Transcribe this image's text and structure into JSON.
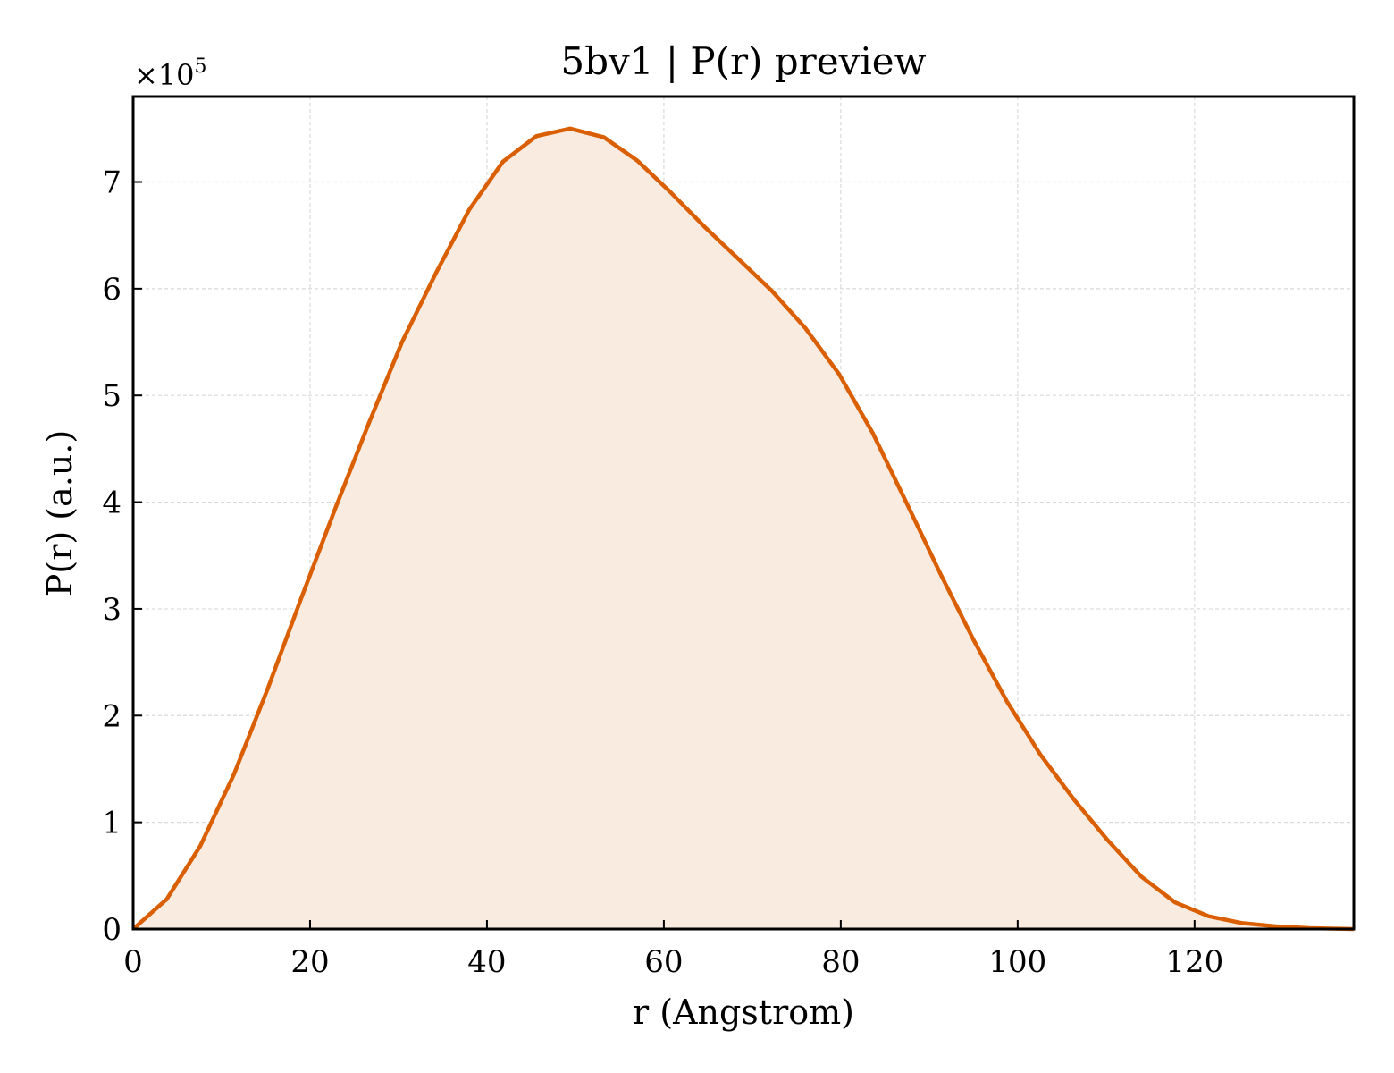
{
  "chart_data": {
    "type": "area",
    "title": "5bv1 | P(r) preview",
    "xlabel": "r (Angstrom)",
    "ylabel": "P(r) (a.u.)",
    "y_offset_label": "×10",
    "y_offset_exponent": "5",
    "y_scale": 100000,
    "xlim": [
      0,
      138
    ],
    "ylim": [
      0,
      780000
    ],
    "x_ticks": [
      0,
      20,
      40,
      60,
      80,
      100,
      120
    ],
    "y_ticks": [
      0,
      1,
      2,
      3,
      4,
      5,
      6,
      7
    ],
    "grid": true,
    "line_color": "#d95f02",
    "fill_color": "#f9ebe0",
    "series": [
      {
        "x": [
          0,
          3.8,
          7.6,
          11.4,
          15.2,
          19.0,
          22.8,
          26.6,
          30.4,
          34.2,
          38.0,
          41.8,
          45.6,
          49.4,
          53.2,
          57.0,
          60.8,
          64.6,
          68.4,
          72.2,
          76.0,
          79.8,
          83.6,
          87.4,
          91.2,
          95.0,
          98.8,
          102.6,
          106.4,
          110.2,
          114.0,
          117.8,
          121.6,
          125.4,
          129.2,
          133.0,
          138.0
        ],
        "y": [
          0,
          28000,
          78000,
          145000,
          225000,
          310000,
          393000,
          473000,
          550000,
          614000,
          674000,
          719000,
          743000,
          750000,
          742000,
          720000,
          690000,
          658000,
          628000,
          598000,
          563000,
          520000,
          465000,
          400000,
          334000,
          271000,
          213000,
          163000,
          121000,
          83000,
          49000,
          25000,
          12000,
          5500,
          2500,
          800,
          0
        ]
      }
    ]
  }
}
